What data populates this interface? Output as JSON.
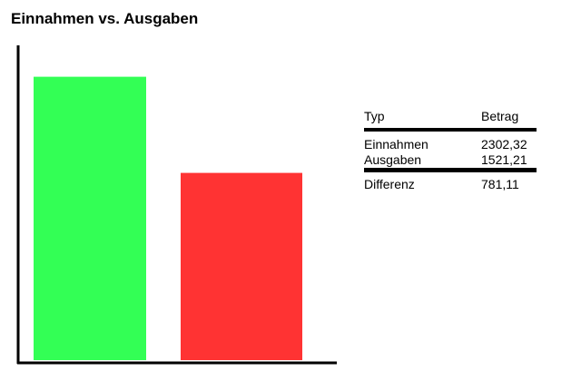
{
  "chart_data": {
    "type": "bar",
    "title": "Einnahmen vs. Ausgaben",
    "categories": [
      "Einnahmen",
      "Ausgaben"
    ],
    "values": [
      2302.32,
      1521.21
    ],
    "colors": [
      "#33ff55",
      "#ff3333"
    ],
    "ylim": [
      0,
      2550
    ],
    "xlabel": "",
    "ylabel": "",
    "grid": false,
    "legend": "none",
    "show_axis_ticks": false
  },
  "summary_table": {
    "headers": [
      "Typ",
      "Betrag"
    ],
    "rows": [
      {
        "type": "Einnahmen",
        "amount": "2302,32"
      },
      {
        "type": "Ausgaben",
        "amount": "1521,21"
      }
    ],
    "total": {
      "type": "Differenz",
      "amount": "781,11"
    }
  }
}
